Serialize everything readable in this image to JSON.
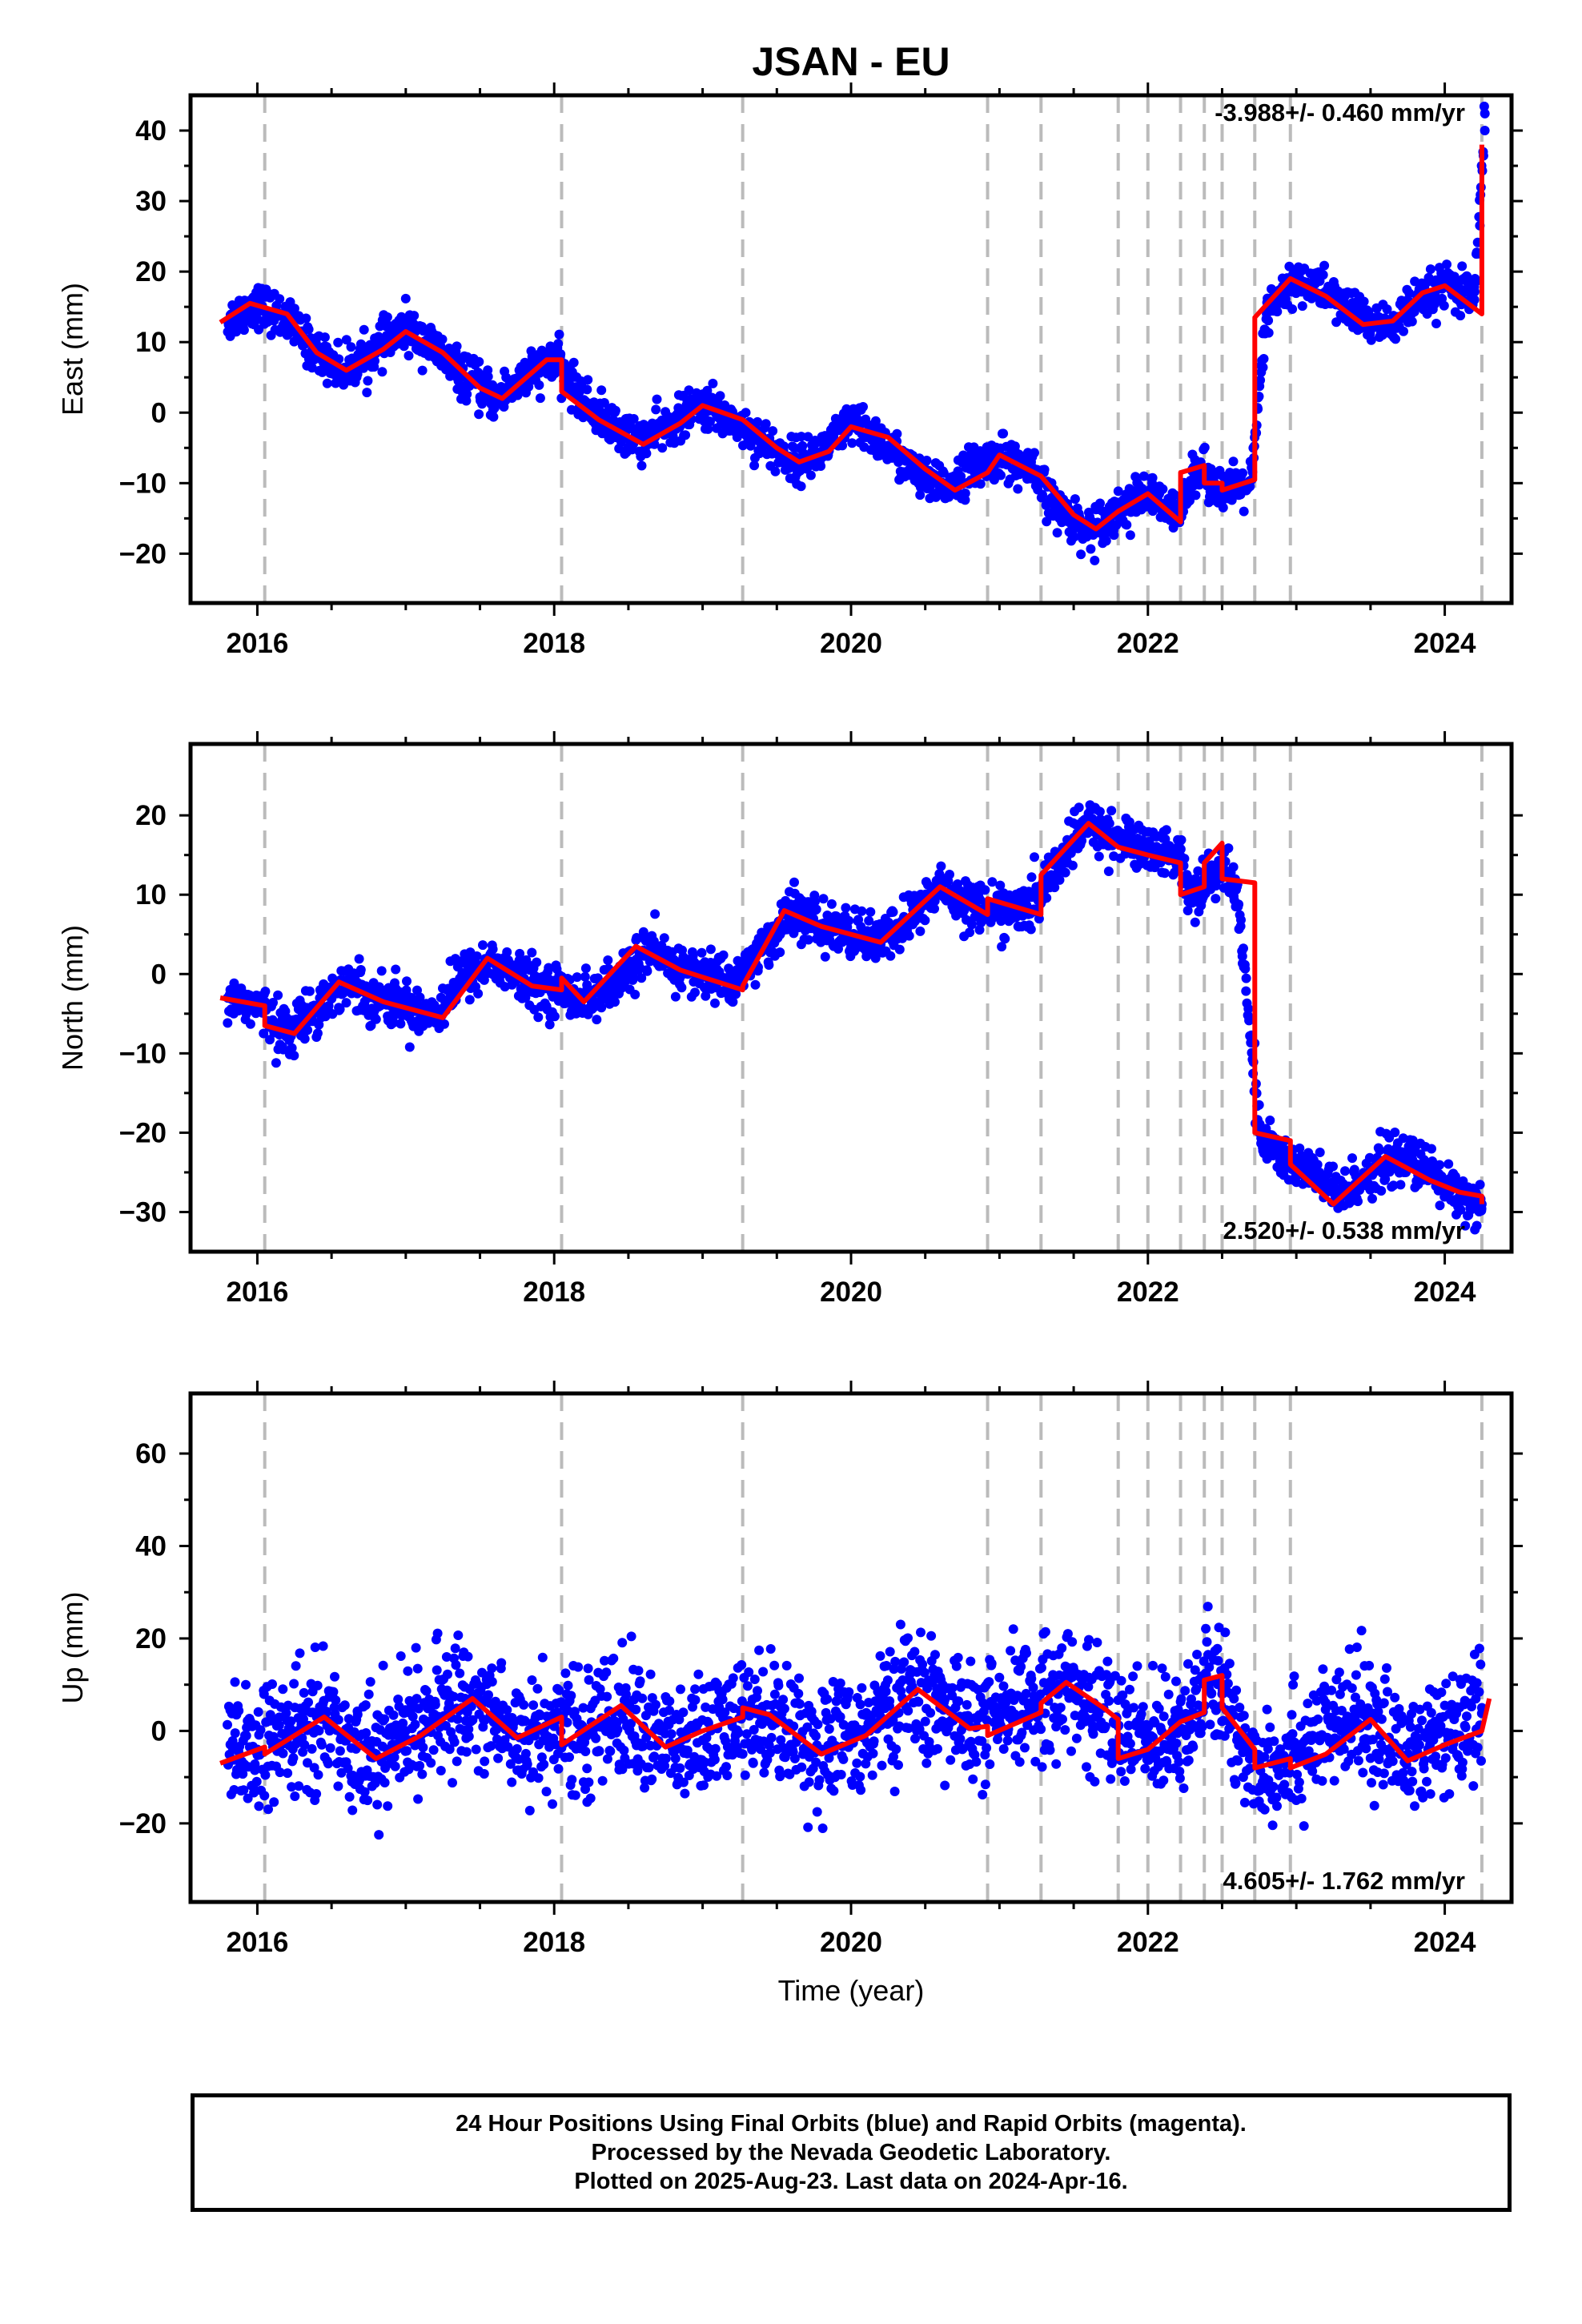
{
  "title": "JSAN - EU",
  "footer": {
    "line1": "24 Hour Positions Using Final Orbits (blue) and Rapid Orbits (magenta).",
    "line2": "Processed by the Nevada Geodetic Laboratory.",
    "line3": "Plotted on 2025-Aug-23. Last data on 2024-Apr-16."
  },
  "colors": {
    "points": "#0000ff",
    "model": "#ff0000",
    "events": "#bbbbbb",
    "axes": "#000000"
  },
  "chart_data": [
    {
      "type": "scatter",
      "title": "JSAN - EU",
      "ylabel": "East (mm)",
      "xlabel": "",
      "xlim": [
        2015.55,
        2024.45
      ],
      "ylim": [
        -27,
        45
      ],
      "xticks": [
        2016,
        2018,
        2020,
        2022,
        2024
      ],
      "yticks": [
        -20,
        -10,
        0,
        10,
        20,
        30,
        40
      ],
      "rate_text": "-3.988+/- 0.460 mm/yr",
      "rate_position": "top-right",
      "grid": false,
      "event_lines": [
        2016.05,
        2018.05,
        2019.27,
        2020.92,
        2021.28,
        2021.8,
        2022.0,
        2022.22,
        2022.38,
        2022.5,
        2022.72,
        2022.96,
        2024.25
      ],
      "series": [
        {
          "kind": "daily_positions",
          "x": [
            2015.8,
            2016.0,
            2016.2,
            2016.4,
            2016.6,
            2016.8,
            2017.0,
            2017.2,
            2017.4,
            2017.6,
            2017.8,
            2018.0,
            2018.2,
            2018.4,
            2018.6,
            2018.8,
            2019.0,
            2019.2,
            2019.4,
            2019.6,
            2019.8,
            2020.0,
            2020.2,
            2020.4,
            2020.6,
            2020.8,
            2021.0,
            2021.2,
            2021.4,
            2021.6,
            2021.8,
            2022.0,
            2022.2,
            2022.3,
            2022.4,
            2022.5,
            2022.6,
            2022.7,
            2022.8,
            2023.0,
            2023.2,
            2023.4,
            2023.6,
            2023.8,
            2024.0,
            2024.2,
            2024.27
          ],
          "y": [
            13,
            15.5,
            13,
            8.5,
            6,
            9,
            12,
            9,
            5,
            2,
            5,
            7.5,
            1.5,
            -2,
            -4,
            -1.5,
            1,
            -1,
            -4,
            -7,
            -5.5,
            -1.5,
            -4,
            -8,
            -11,
            -8,
            -6,
            -8,
            -14,
            -16.5,
            -14,
            -11.5,
            -15,
            -8,
            -9,
            -11,
            -11,
            -9.5,
            14,
            19,
            17,
            14,
            12,
            15,
            18,
            16,
            40
          ]
        },
        {
          "kind": "model_fit",
          "x": [
            2015.75,
            2015.95,
            2016.2,
            2016.4,
            2016.6,
            2016.85,
            2017.0,
            2017.25,
            2017.5,
            2017.65,
            2017.95,
            2018.05,
            2018.05,
            2018.3,
            2018.6,
            2018.85,
            2019.0,
            2019.27,
            2019.5,
            2019.65,
            2019.85,
            2020.0,
            2020.25,
            2020.5,
            2020.7,
            2020.92,
            2021.0,
            2021.28,
            2021.5,
            2021.65,
            2021.8,
            2022.0,
            2022.22,
            2022.22,
            2022.38,
            2022.38,
            2022.5,
            2022.5,
            2022.72,
            2022.72,
            2022.96,
            2023.2,
            2023.45,
            2023.65,
            2023.85,
            2024.0,
            2024.25,
            2024.25
          ],
          "y": [
            12.8,
            15.5,
            14,
            8.5,
            6,
            9,
            11.5,
            8.5,
            3.5,
            2,
            7.5,
            7.5,
            3,
            -1,
            -4.5,
            -1.5,
            1,
            -1,
            -5,
            -7,
            -5.5,
            -2,
            -3.5,
            -8,
            -11,
            -8.5,
            -6,
            -9,
            -14.5,
            -16.5,
            -14,
            -11.5,
            -15.5,
            -8.5,
            -7.5,
            -10,
            -10,
            -11,
            -9.5,
            13.5,
            19,
            16.5,
            12.5,
            13,
            17,
            18,
            14,
            38
          ]
        }
      ]
    },
    {
      "type": "scatter",
      "ylabel": "North (mm)",
      "xlabel": "",
      "xlim": [
        2015.55,
        2024.45
      ],
      "ylim": [
        -35,
        29
      ],
      "xticks": [
        2016,
        2018,
        2020,
        2022,
        2024
      ],
      "yticks": [
        -30,
        -20,
        -10,
        0,
        10,
        20
      ],
      "rate_text": "2.520+/- 0.538 mm/yr",
      "rate_position": "bottom-right",
      "grid": false,
      "event_lines": [
        2016.05,
        2018.05,
        2019.27,
        2020.92,
        2021.28,
        2021.8,
        2022.0,
        2022.22,
        2022.38,
        2022.5,
        2022.72,
        2022.96,
        2024.25
      ],
      "series": [
        {
          "kind": "daily_positions",
          "x": [
            2015.8,
            2016.0,
            2016.2,
            2016.4,
            2016.6,
            2016.8,
            2017.0,
            2017.2,
            2017.4,
            2017.6,
            2017.8,
            2018.0,
            2018.2,
            2018.4,
            2018.6,
            2018.8,
            2019.0,
            2019.2,
            2019.4,
            2019.6,
            2019.8,
            2020.0,
            2020.2,
            2020.4,
            2020.6,
            2020.8,
            2021.0,
            2021.2,
            2021.4,
            2021.6,
            2021.8,
            2022.0,
            2022.2,
            2022.3,
            2022.4,
            2022.5,
            2022.6,
            2022.75,
            2022.9,
            2023.1,
            2023.3,
            2023.5,
            2023.7,
            2023.9,
            2024.1,
            2024.25
          ],
          "y": [
            -3,
            -4,
            -7.5,
            -4,
            -1,
            -3,
            -4,
            -5,
            0,
            1.5,
            -1,
            -2,
            -3,
            -2,
            3,
            1,
            0,
            -1,
            3,
            8,
            6,
            5,
            4,
            7,
            11,
            9,
            8,
            8,
            14,
            19,
            17,
            16,
            15,
            10,
            12,
            13,
            11,
            -20,
            -23,
            -25,
            -28,
            -25,
            -23,
            -25,
            -28,
            -29
          ]
        },
        {
          "kind": "model_fit",
          "x": [
            2015.75,
            2016.05,
            2016.05,
            2016.25,
            2016.55,
            2016.85,
            2017.25,
            2017.55,
            2017.85,
            2018.05,
            2018.05,
            2018.2,
            2018.55,
            2018.85,
            2019.27,
            2019.27,
            2019.55,
            2019.8,
            2020.2,
            2020.6,
            2020.92,
            2020.92,
            2021.28,
            2021.28,
            2021.6,
            2021.8,
            2022.0,
            2022.22,
            2022.22,
            2022.38,
            2022.38,
            2022.5,
            2022.5,
            2022.72,
            2022.72,
            2022.96,
            2022.96,
            2023.25,
            2023.6,
            2023.9,
            2024.1,
            2024.25,
            2024.25
          ],
          "y": [
            -3,
            -4,
            -6.5,
            -7.5,
            -1,
            -3.5,
            -5.5,
            2,
            -1.5,
            -2,
            -0.5,
            -3.5,
            3.5,
            0.5,
            -2,
            -1.5,
            8,
            6,
            4,
            11,
            7.5,
            9.5,
            7.5,
            12.5,
            19,
            16,
            15,
            14,
            10,
            11,
            14,
            16.5,
            12,
            11.5,
            -20,
            -21,
            -24,
            -29,
            -23,
            -26,
            -27.5,
            -28,
            -29
          ]
        }
      ]
    },
    {
      "type": "scatter",
      "ylabel": "Up (mm)",
      "xlabel": "Time (year)",
      "xlim": [
        2015.55,
        2024.45
      ],
      "ylim": [
        -37,
        73
      ],
      "xticks": [
        2016,
        2018,
        2020,
        2022,
        2024
      ],
      "yticks": [
        -20,
        0,
        20,
        40,
        60
      ],
      "rate_text": "4.605+/- 1.762 mm/yr",
      "rate_position": "bottom-right",
      "grid": false,
      "event_lines": [
        2016.05,
        2018.05,
        2019.27,
        2020.92,
        2021.28,
        2021.8,
        2022.0,
        2022.22,
        2022.38,
        2022.5,
        2022.72,
        2022.96,
        2024.25
      ],
      "series": [
        {
          "kind": "daily_positions",
          "x": [
            2015.8,
            2016.0,
            2016.2,
            2016.4,
            2016.6,
            2016.8,
            2017.0,
            2017.2,
            2017.4,
            2017.6,
            2017.8,
            2018.0,
            2018.2,
            2018.4,
            2018.6,
            2018.8,
            2019.0,
            2019.2,
            2019.4,
            2019.6,
            2019.8,
            2020.0,
            2020.2,
            2020.4,
            2020.6,
            2020.8,
            2021.0,
            2021.2,
            2021.4,
            2021.6,
            2021.8,
            2022.0,
            2022.2,
            2022.3,
            2022.4,
            2022.5,
            2022.6,
            2022.75,
            2022.9,
            2023.1,
            2023.3,
            2023.5,
            2023.7,
            2023.9,
            2024.1,
            2024.25
          ],
          "y": [
            -7,
            -4,
            -2,
            3,
            -2,
            -5,
            0,
            3,
            7,
            3,
            -2,
            1,
            -1,
            4,
            1,
            -4,
            -2,
            1,
            4,
            1,
            -4,
            -1,
            3,
            9,
            5,
            1,
            2,
            6,
            10,
            6,
            1,
            -3,
            2,
            4,
            10,
            8,
            -2,
            -7,
            -6,
            -2,
            1,
            3,
            -5,
            -3,
            -1,
            5
          ]
        },
        {
          "kind": "model_fit",
          "x": [
            2015.75,
            2016.05,
            2016.05,
            2016.2,
            2016.45,
            2016.8,
            2017.1,
            2017.45,
            2017.75,
            2018.05,
            2018.05,
            2018.45,
            2018.75,
            2019.0,
            2019.27,
            2019.27,
            2019.45,
            2019.8,
            2020.1,
            2020.45,
            2020.8,
            2020.92,
            2020.92,
            2021.28,
            2021.28,
            2021.45,
            2021.7,
            2021.8,
            2021.8,
            2022.0,
            2022.22,
            2022.38,
            2022.38,
            2022.5,
            2022.5,
            2022.72,
            2022.72,
            2022.96,
            2022.96,
            2023.2,
            2023.5,
            2023.75,
            2024.0,
            2024.25,
            2024.3
          ],
          "y": [
            -7,
            -3.5,
            -5,
            -2,
            3,
            -6,
            -1,
            7,
            -1.5,
            3,
            -3,
            5.5,
            -3.5,
            0,
            3,
            5,
            3.5,
            -5,
            -1,
            9,
            0.5,
            1,
            -1,
            4,
            6,
            10.5,
            5,
            2.5,
            -6,
            -4,
            2,
            4,
            11,
            12,
            5,
            -4,
            -8,
            -6,
            -8,
            -5,
            2.5,
            -6.5,
            -3,
            0,
            7
          ]
        }
      ]
    }
  ]
}
